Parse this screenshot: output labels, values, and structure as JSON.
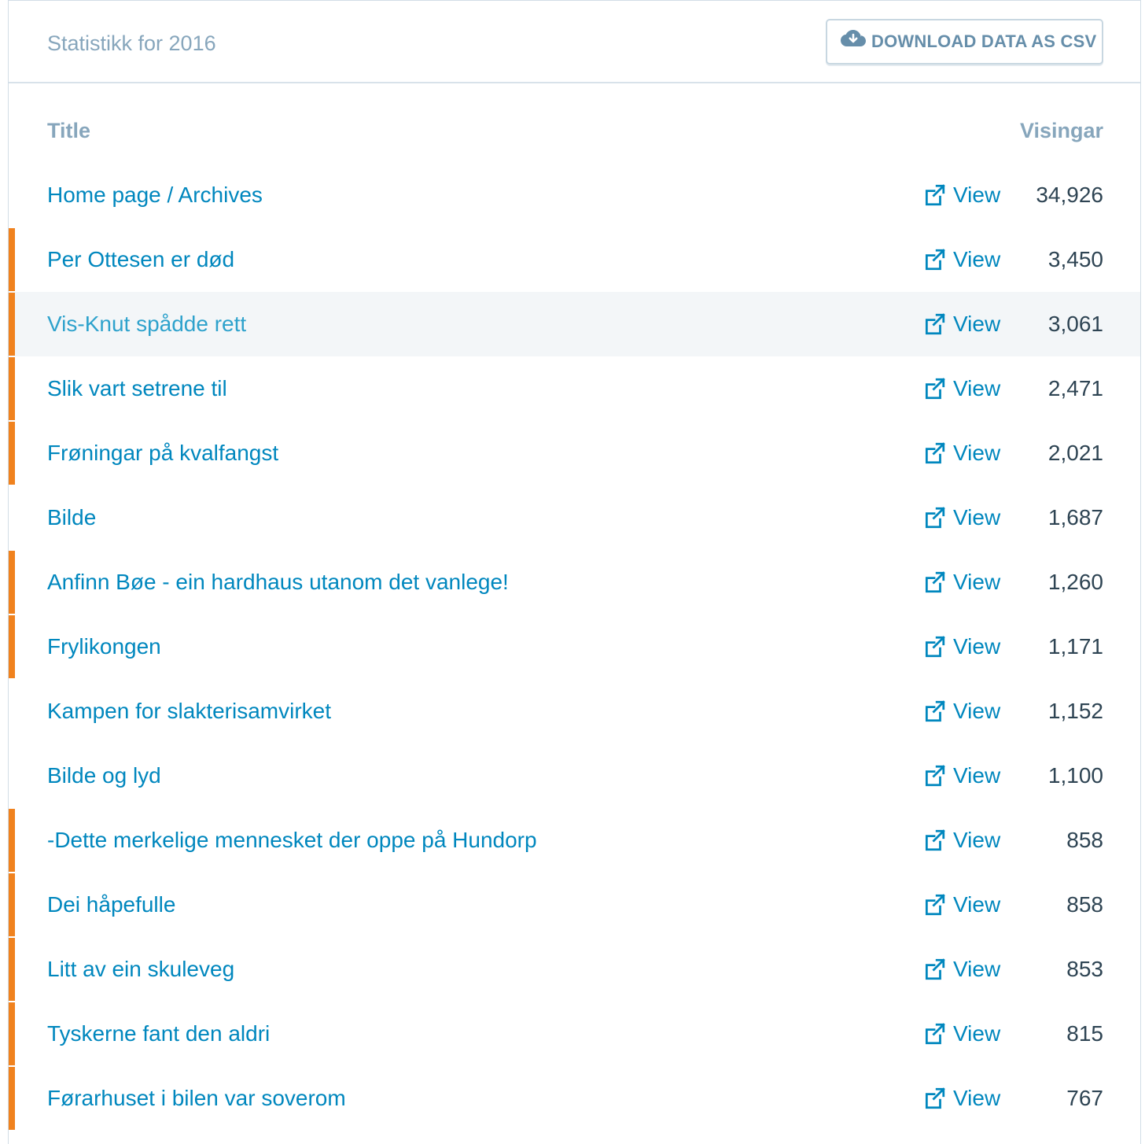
{
  "header": {
    "title": "Statistikk for 2016",
    "download_label": "DOWNLOAD DATA AS CSV",
    "download_icon": "cloud-download-icon"
  },
  "columns": {
    "title": "Title",
    "views": "Visingar"
  },
  "view_label": "View",
  "view_icon": "external-link-icon",
  "colors": {
    "accent": "#f0821e",
    "link": "#0087be",
    "link_hover": "#2ea2cc",
    "muted": "#87a6bc",
    "count": "#2e4453",
    "hover_bg": "#f3f6f8"
  },
  "rows": [
    {
      "title": "Home page / Archives",
      "count": "34,926",
      "accent": false,
      "hover": false
    },
    {
      "title": "Per Ottesen er død",
      "count": "3,450",
      "accent": true,
      "hover": false
    },
    {
      "title": "Vis-Knut spådde rett",
      "count": "3,061",
      "accent": true,
      "hover": true
    },
    {
      "title": "Slik vart setrene til",
      "count": "2,471",
      "accent": true,
      "hover": false
    },
    {
      "title": "Frøningar på kvalfangst",
      "count": "2,021",
      "accent": true,
      "hover": false
    },
    {
      "title": "Bilde",
      "count": "1,687",
      "accent": false,
      "hover": false
    },
    {
      "title": "Anfinn Bøe - ein hardhaus utanom det vanlege!",
      "count": "1,260",
      "accent": true,
      "hover": false
    },
    {
      "title": "Frylikongen",
      "count": "1,171",
      "accent": true,
      "hover": false
    },
    {
      "title": "Kampen for slakterisamvirket",
      "count": "1,152",
      "accent": false,
      "hover": false
    },
    {
      "title": "Bilde og lyd",
      "count": "1,100",
      "accent": false,
      "hover": false
    },
    {
      "title": "-Dette merkelige mennesket der oppe på Hundorp",
      "count": "858",
      "accent": true,
      "hover": false
    },
    {
      "title": "Dei håpefulle",
      "count": "858",
      "accent": true,
      "hover": false
    },
    {
      "title": "Litt av ein skuleveg",
      "count": "853",
      "accent": true,
      "hover": false
    },
    {
      "title": "Tyskerne fant den aldri",
      "count": "815",
      "accent": true,
      "hover": false
    },
    {
      "title": "Førarhuset i bilen var soverom",
      "count": "767",
      "accent": true,
      "hover": false
    }
  ]
}
